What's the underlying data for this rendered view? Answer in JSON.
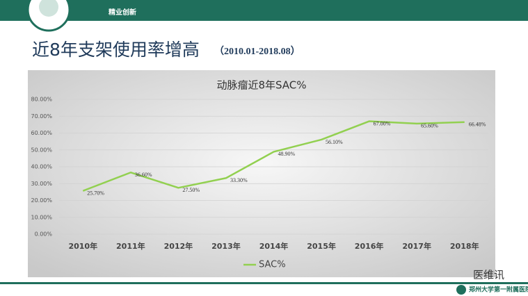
{
  "slide": {
    "header": "精业创新",
    "title": "近8年支架使用率增高",
    "subtitle": "（2010.01-2018.08）",
    "watermark": "医维讯",
    "footer_logo": "郑州大学第一附属医院"
  },
  "chart_data": {
    "type": "line",
    "title": "动脉瘤近8年SAC%",
    "categories": [
      "2010年",
      "2011年",
      "2012年",
      "2013年",
      "2014年",
      "2015年",
      "2016年",
      "2017年",
      "2018年"
    ],
    "series": [
      {
        "name": "SAC%",
        "color": "#92d050",
        "values": [
          25.7,
          36.6,
          27.5,
          33.3,
          48.9,
          56.1,
          67.0,
          65.6,
          66.48
        ],
        "value_labels": [
          "25.70%",
          "36.60%",
          "27.50%",
          "33.30%",
          "48.90%",
          "56.10%",
          "67.00%",
          "65.60%",
          "66.48%"
        ]
      }
    ],
    "ylim": [
      0,
      80
    ],
    "yticks": [
      {
        "value": 0,
        "label": "0.00%"
      },
      {
        "value": 10,
        "label": "10.00%"
      },
      {
        "value": 20,
        "label": "20.00%"
      },
      {
        "value": 30,
        "label": "30.00%"
      },
      {
        "value": 40,
        "label": "40.00%"
      },
      {
        "value": 50,
        "label": "50.00%"
      },
      {
        "value": 60,
        "label": "60.00%"
      },
      {
        "value": 70,
        "label": "70.00%"
      },
      {
        "value": 80,
        "label": "80.00%"
      }
    ],
    "grid": true,
    "legend": "bottom"
  }
}
